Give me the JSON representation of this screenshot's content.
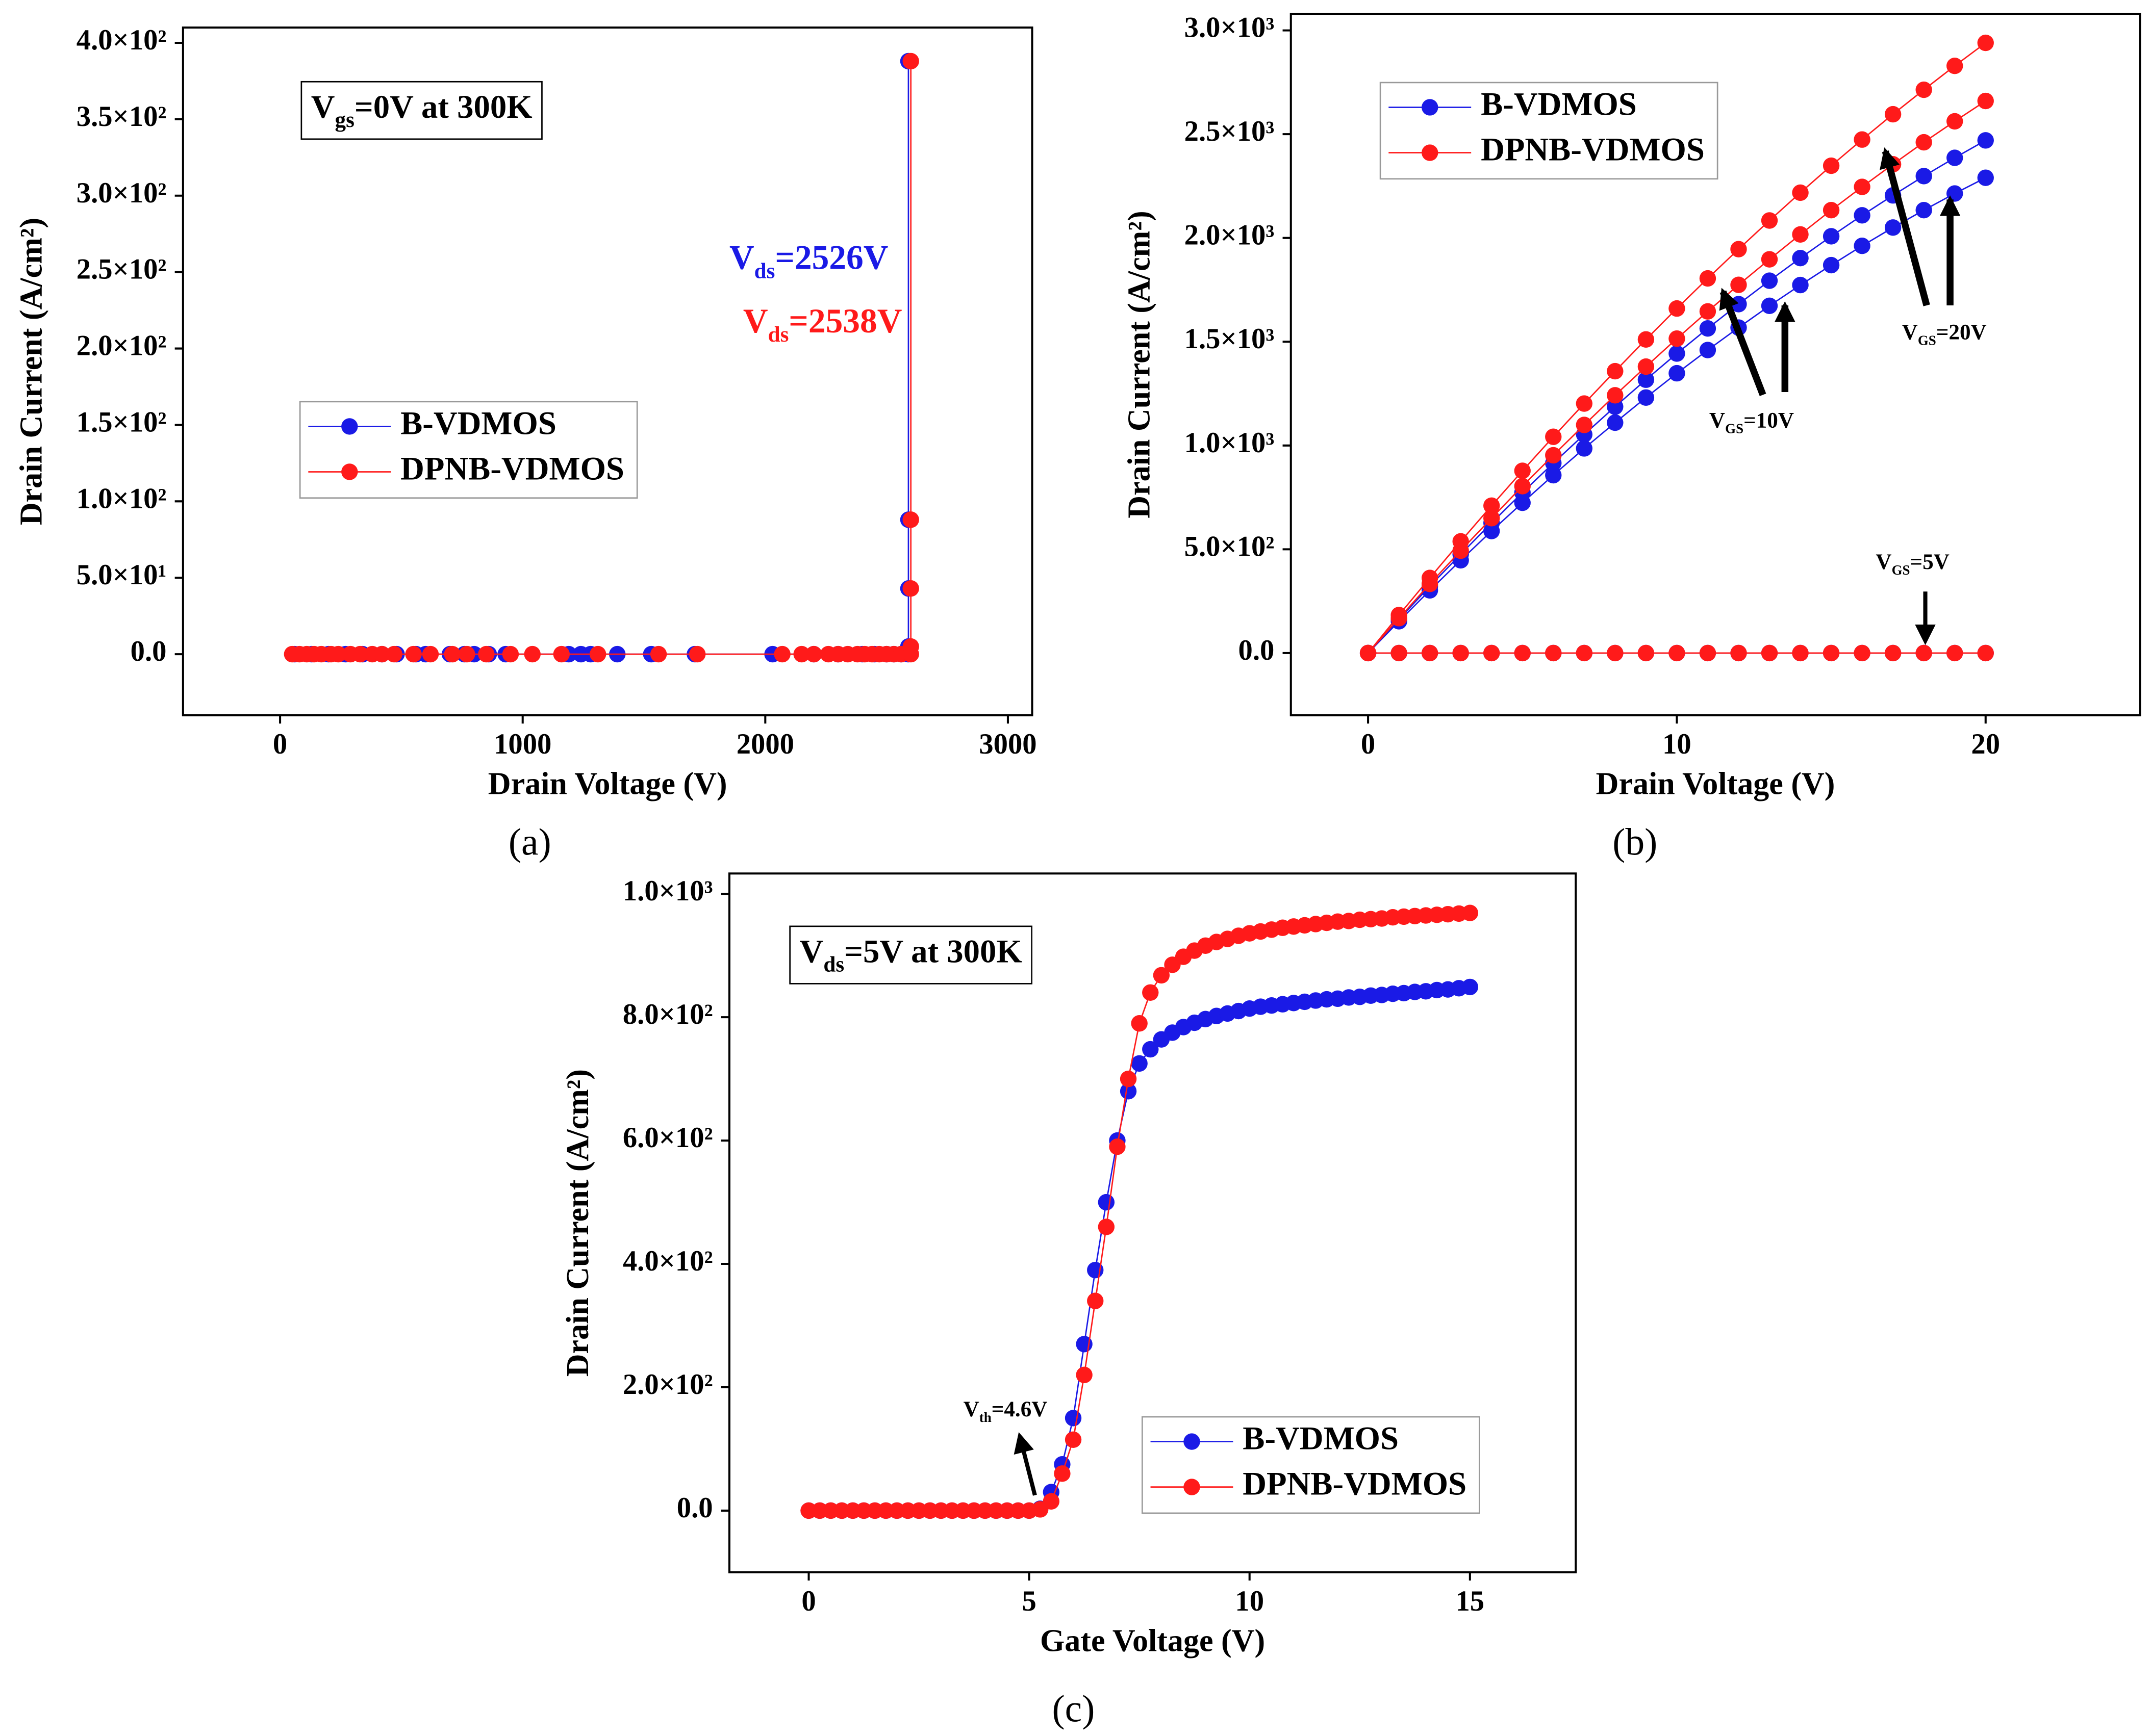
{
  "chart_data": [
    {
      "type": "line",
      "caption": "(a)",
      "xlabel": "Drain Voltage (V)",
      "ylabel": "Drain Current (A/cm²)",
      "xlim": [
        -400,
        3100
      ],
      "xticks": [
        0,
        1000,
        2000,
        3000
      ],
      "ylim": [
        -40,
        410
      ],
      "yticks": [
        {
          "value": 0,
          "label": "0.0"
        },
        {
          "value": 50,
          "label": "5.0×10¹"
        },
        {
          "value": 100,
          "label": "1.0×10²"
        },
        {
          "value": 150,
          "label": "1.5×10²"
        },
        {
          "value": 200,
          "label": "2.0×10²"
        },
        {
          "value": 250,
          "label": "2.5×10²"
        },
        {
          "value": 300,
          "label": "3.0×10²"
        },
        {
          "value": 350,
          "label": "3.5×10²"
        },
        {
          "value": 400,
          "label": "4.0×10²"
        }
      ],
      "legend": "center left",
      "marker": true,
      "series": [
        {
          "name": "B-VDMOS",
          "color": "#1a1ae6",
          "x": [
            60,
            130,
            200,
            270,
            340,
            420,
            480,
            560,
            600,
            700,
            760,
            800,
            860,
            930,
            1190,
            1240,
            1280,
            1390,
            1530,
            1710,
            2030,
            2200,
            2300,
            2400,
            2450,
            2500,
            2530,
            2560,
            2590,
            2590,
            2590,
            2590,
            2590
          ],
          "values": [
            0,
            0,
            0,
            0,
            0,
            0,
            0,
            0,
            0,
            0,
            0,
            0,
            0,
            0,
            0,
            0,
            0,
            0,
            0,
            0,
            0,
            0,
            0,
            0,
            0,
            0,
            0,
            0,
            0,
            5,
            43,
            88,
            388
          ]
        },
        {
          "name": "DPNB-VDMOS",
          "color": "#ff1a1a",
          "x": [
            50,
            80,
            110,
            140,
            170,
            210,
            240,
            290,
            330,
            380,
            420,
            470,
            550,
            620,
            710,
            770,
            850,
            950,
            1040,
            1160,
            1310,
            1560,
            1720,
            2070,
            2150,
            2200,
            2260,
            2300,
            2340,
            2380,
            2410,
            2440,
            2470,
            2500,
            2530,
            2560,
            2600,
            2600,
            2600,
            2600,
            2600
          ],
          "values": [
            0,
            0,
            0,
            0,
            0,
            0,
            0,
            0,
            0,
            0,
            0,
            0,
            0,
            0,
            0,
            0,
            0,
            0,
            0,
            0,
            0,
            0,
            0,
            0,
            0,
            0,
            0,
            0,
            0,
            0,
            0,
            0,
            0,
            0,
            0,
            0,
            0,
            5,
            43,
            88,
            388
          ]
        }
      ],
      "annotations": [
        {
          "box": true,
          "parts": [
            {
              "text": "V"
            },
            {
              "text": "gs",
              "sub": true
            },
            {
              "text": "=0V at 300K"
            }
          ]
        },
        {
          "color": "#1a1ae6",
          "parts": [
            {
              "text": "V"
            },
            {
              "text": "ds",
              "sub": true
            },
            {
              "text": "=2526V"
            }
          ]
        },
        {
          "color": "#ff1a1a",
          "parts": [
            {
              "text": "V"
            },
            {
              "text": "ds",
              "sub": true
            },
            {
              "text": "=2538V"
            }
          ]
        }
      ]
    },
    {
      "type": "line",
      "caption": "(b)",
      "xlabel": "Drain Voltage (V)",
      "ylabel": "Drain Current (A/cm²)",
      "xlim": [
        -2.5,
        25
      ],
      "xticks": [
        0,
        10,
        20
      ],
      "ylim": [
        -300,
        3080
      ],
      "yticks": [
        {
          "value": 0,
          "label": "0.0"
        },
        {
          "value": 500,
          "label": "5.0×10²"
        },
        {
          "value": 1000,
          "label": "1.0×10³"
        },
        {
          "value": 1500,
          "label": "1.5×10³"
        },
        {
          "value": 2000,
          "label": "2.0×10³"
        },
        {
          "value": 2500,
          "label": "2.5×10³"
        },
        {
          "value": 3000,
          "label": "3.0×10³"
        }
      ],
      "legend": "upper left",
      "marker": true,
      "x": [
        0,
        1,
        2,
        3,
        4,
        5,
        6,
        7,
        8,
        9,
        10,
        11,
        12,
        13,
        14,
        15,
        16,
        17,
        18,
        19,
        20
      ],
      "series": [
        {
          "name": "B-VDMOS",
          "color": "#1a1ae6",
          "values": [
            0,
            163,
            322,
            476,
            627,
            773,
            915,
            1053,
            1187,
            1317,
            1443,
            1564,
            1681,
            1794,
            1903,
            2008,
            2109,
            2205,
            2298,
            2386,
            2470
          ]
        },
        {
          "name": "B-VDMOS",
          "color": "#1a1ae6",
          "values": [
            0,
            153,
            302,
            447,
            588,
            724,
            857,
            986,
            1110,
            1231,
            1348,
            1460,
            1568,
            1673,
            1773,
            1869,
            1962,
            2050,
            2134,
            2214,
            2290
          ]
        },
        {
          "name": "B-VDMOS",
          "color": "#1a1ae6",
          "values": [
            0,
            0,
            0,
            0,
            0,
            0,
            0,
            0,
            0,
            0,
            0,
            0,
            0,
            0,
            0,
            0,
            0,
            0,
            0,
            0,
            0
          ]
        },
        {
          "name": "DPNB-VDMOS",
          "color": "#ff1a1a",
          "values": [
            0,
            183,
            362,
            538,
            710,
            878,
            1042,
            1202,
            1358,
            1511,
            1660,
            1805,
            1946,
            2084,
            2218,
            2348,
            2474,
            2596,
            2714,
            2829,
            2940
          ]
        },
        {
          "name": "DPNB-VDMOS",
          "color": "#ff1a1a",
          "values": [
            0,
            168,
            333,
            493,
            650,
            804,
            953,
            1099,
            1242,
            1380,
            1515,
            1646,
            1774,
            1897,
            2017,
            2134,
            2246,
            2355,
            2461,
            2562,
            2660
          ]
        },
        {
          "name": "DPNB-VDMOS",
          "color": "#ff1a1a",
          "values": [
            0,
            0,
            0,
            0,
            0,
            0,
            0,
            0,
            0,
            0,
            0,
            0,
            0,
            0,
            0,
            0,
            0,
            0,
            0,
            0,
            0
          ]
        }
      ],
      "annotations": [
        {
          "parts": [
            {
              "text": "V"
            },
            {
              "text": "GS",
              "sub": true
            },
            {
              "text": "=20V"
            }
          ]
        },
        {
          "parts": [
            {
              "text": "V"
            },
            {
              "text": "GS",
              "sub": true
            },
            {
              "text": "=10V"
            }
          ]
        },
        {
          "parts": [
            {
              "text": "V"
            },
            {
              "text": "GS",
              "sub": true
            },
            {
              "text": "=5V"
            }
          ]
        }
      ]
    },
    {
      "type": "line",
      "caption": "(c)",
      "xlabel": "Gate Voltage (V)",
      "ylabel": "Drain Current (A/cm²)",
      "xlim": [
        -1.8,
        17.4
      ],
      "xticks": [
        0,
        5,
        10,
        15
      ],
      "ylim": [
        -100,
        1033
      ],
      "yticks": [
        {
          "value": 0,
          "label": "0.0"
        },
        {
          "value": 200,
          "label": "2.0×10²"
        },
        {
          "value": 400,
          "label": "4.0×10²"
        },
        {
          "value": 600,
          "label": "6.0×10²"
        },
        {
          "value": 800,
          "label": "8.0×10²"
        },
        {
          "value": 1000,
          "label": "1.0×10³"
        }
      ],
      "legend": "lower right",
      "marker": true,
      "x": [
        0,
        0.25,
        0.5,
        0.75,
        1,
        1.25,
        1.5,
        1.75,
        2,
        2.25,
        2.5,
        2.75,
        3,
        3.25,
        3.5,
        3.75,
        4,
        4.25,
        4.5,
        4.75,
        5,
        5.25,
        5.5,
        5.75,
        6,
        6.25,
        6.5,
        6.75,
        7,
        7.25,
        7.5,
        7.75,
        8,
        8.25,
        8.5,
        8.75,
        9,
        9.25,
        9.5,
        9.75,
        10,
        10.25,
        10.5,
        10.75,
        11,
        11.25,
        11.5,
        11.75,
        12,
        12.25,
        12.5,
        12.75,
        13,
        13.25,
        13.5,
        13.75,
        14,
        14.25,
        14.5,
        14.75,
        15
      ],
      "series": [
        {
          "name": "B-VDMOS",
          "color": "#1a1ae6",
          "values": [
            0,
            0,
            0,
            0,
            0,
            0,
            0,
            0,
            0,
            0,
            0,
            0,
            0,
            0,
            0,
            0,
            0,
            0,
            0,
            0,
            0,
            3,
            30,
            75,
            150,
            270,
            390,
            500,
            600,
            680,
            725,
            748,
            764,
            775,
            784,
            791,
            797,
            802,
            806,
            810,
            814,
            817,
            819,
            821,
            823,
            825,
            827,
            829,
            830,
            832,
            833,
            835,
            836,
            838,
            839,
            841,
            842,
            844,
            845,
            847,
            849
          ]
        },
        {
          "name": "DPNB-VDMOS",
          "color": "#ff1a1a",
          "values": [
            0,
            0,
            0,
            0,
            0,
            0,
            0,
            0,
            0,
            0,
            0,
            0,
            0,
            0,
            0,
            0,
            0,
            0,
            0,
            0,
            0,
            2,
            15,
            60,
            115,
            220,
            340,
            460,
            590,
            700,
            790,
            840,
            868,
            885,
            898,
            908,
            916,
            922,
            927,
            932,
            936,
            939,
            942,
            945,
            947,
            949,
            951,
            953,
            955,
            956,
            958,
            959,
            960,
            962,
            963,
            964,
            965,
            966,
            967,
            968,
            969
          ]
        }
      ],
      "annotations": [
        {
          "box": true,
          "parts": [
            {
              "text": "V"
            },
            {
              "text": "ds",
              "sub": true
            },
            {
              "text": "=5V at 300K"
            }
          ]
        },
        {
          "parts": [
            {
              "text": "V"
            },
            {
              "text": "th",
              "sub": true
            },
            {
              "text": "=4.6V"
            }
          ]
        }
      ]
    }
  ]
}
